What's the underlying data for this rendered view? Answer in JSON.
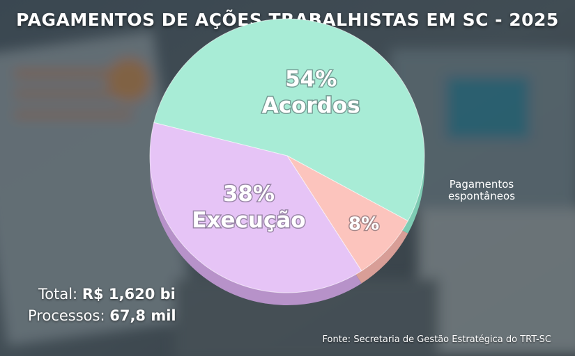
{
  "header": {
    "title": "PAGAMENTOS DE AÇÕES TRABALHISTAS EM SC - 2025"
  },
  "chart_data": {
    "type": "pie",
    "title": "PAGAMENTOS DE AÇÕES TRABALHISTAS EM SC - 2025",
    "slices": [
      {
        "label": "Acordos",
        "value": 54,
        "pct_label": "54%",
        "color": "#a8ecd6",
        "side_color": "#7ecbb3"
      },
      {
        "label": "Pagamentos espontâneos",
        "value": 8,
        "pct_label": "8%",
        "color": "#fcc4bd",
        "side_color": "#d89e97"
      },
      {
        "label": "Execução",
        "value": 38,
        "pct_label": "38%",
        "color": "#e6c4f6",
        "side_color": "#b792c9"
      }
    ]
  },
  "summary": {
    "total_label": "Total:",
    "total_value": "R$ 1,620 bi",
    "processes_label": "Processos:",
    "processes_value": "67,8 mil"
  },
  "source": {
    "text": "Fonte: Secretaria de Gestão Estratégica do TRT-SC"
  }
}
